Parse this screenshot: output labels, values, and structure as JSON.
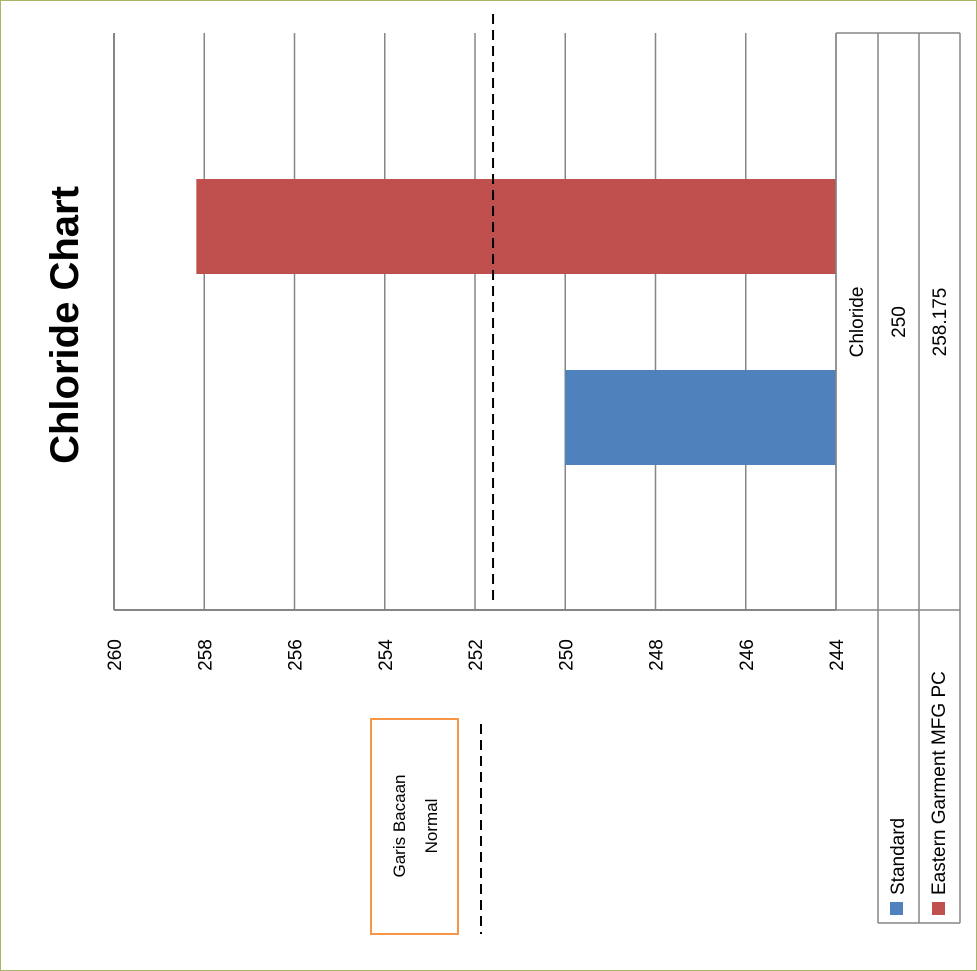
{
  "chart_data": {
    "type": "bar",
    "title": "Chloride Chart",
    "categories": [
      "Chloride"
    ],
    "series": [
      {
        "name": "Standard",
        "values": [
          250
        ],
        "color": "#4f81bd"
      },
      {
        "name": "Eastern Garment MFG PC",
        "values": [
          258.175
        ],
        "color": "#c0504d"
      }
    ],
    "xlim": [
      244,
      260
    ],
    "ticks": [
      260,
      258,
      256,
      254,
      252,
      250,
      248,
      246,
      244
    ],
    "reference_line": {
      "label_line1": "Garis Bacaan",
      "label_line2": "Normal",
      "value": 251.6,
      "style": "dashed"
    },
    "data_table": {
      "category_label": "Chloride",
      "values": [
        "250",
        "258.175"
      ]
    },
    "grid": true,
    "orientation": "rotated"
  }
}
